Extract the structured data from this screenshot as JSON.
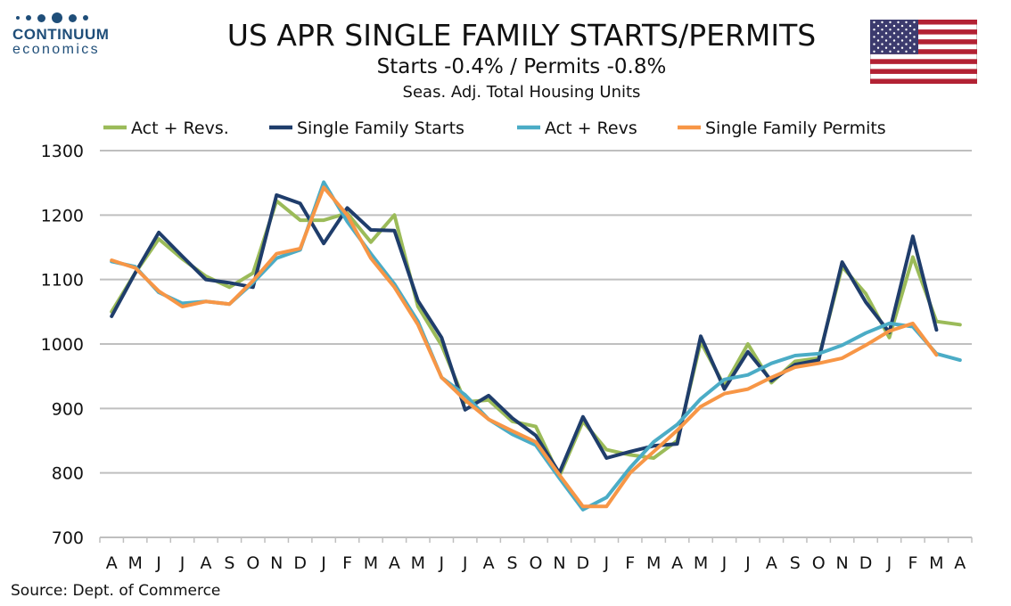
{
  "header": {
    "title": "US APR SINGLE FAMILY STARTS/PERMITS",
    "subtitle": "Starts  -0.4% / Permits -0.8%",
    "subtitle2": "Seas. Adj. Total Housing Units"
  },
  "logo": {
    "name": "CONTINUUM",
    "sub": "economics",
    "color": "#1f4e79"
  },
  "flag_icon": "us-flag-icon",
  "source": "Source: Dept. of Commerce",
  "chart_data": {
    "type": "line",
    "categories": [
      "A",
      "M",
      "J",
      "J",
      "A",
      "S",
      "O",
      "N",
      "D",
      "J",
      "F",
      "M",
      "A",
      "M",
      "J",
      "J",
      "A",
      "S",
      "O",
      "N",
      "D",
      "J",
      "F",
      "M",
      "A",
      "M",
      "J",
      "J",
      "A",
      "S",
      "O",
      "N",
      "D",
      "J",
      "F",
      "M",
      "A"
    ],
    "ylim": [
      700,
      1300
    ],
    "yticks": [
      700,
      800,
      900,
      1000,
      1100,
      1200,
      1300
    ],
    "grid": true,
    "legend_position": "top",
    "series": [
      {
        "name": "Act + Revs.",
        "color": "#9bbb59",
        "values": [
          1050,
          1110,
          1163,
          1132,
          1105,
          1088,
          1110,
          1222,
          1192,
          1192,
          1203,
          1158,
          1200,
          1058,
          998,
          910,
          913,
          880,
          872,
          795,
          880,
          836,
          828,
          823,
          850,
          1003,
          935,
          1000,
          940,
          973,
          978,
          1120,
          1078,
          1010,
          1135,
          1035,
          1030
        ]
      },
      {
        "name": "Single Family Starts",
        "color": "#1f3d6b",
        "values": [
          1043,
          1110,
          1173,
          1136,
          1100,
          1095,
          1088,
          1231,
          1218,
          1156,
          1211,
          1177,
          1176,
          1067,
          1010,
          898,
          920,
          885,
          858,
          800,
          887,
          823,
          833,
          842,
          845,
          1012,
          930,
          988,
          943,
          968,
          975,
          1127,
          1065,
          1018,
          1167,
          1022,
          null
        ]
      },
      {
        "name": "Act + Revs",
        "color": "#4bacc6",
        "values": [
          1128,
          1120,
          1080,
          1063,
          1066,
          1062,
          1095,
          1133,
          1146,
          1251,
          1190,
          1140,
          1093,
          1035,
          948,
          921,
          883,
          860,
          843,
          792,
          743,
          762,
          808,
          848,
          875,
          915,
          945,
          952,
          970,
          982,
          985,
          998,
          1017,
          1032,
          1027,
          985,
          975
        ]
      },
      {
        "name": "Single Family Permits",
        "color": "#f79646",
        "values": [
          1130,
          1118,
          1082,
          1058,
          1066,
          1062,
          1098,
          1140,
          1148,
          1243,
          1200,
          1133,
          1088,
          1030,
          948,
          913,
          883,
          865,
          848,
          797,
          748,
          748,
          800,
          833,
          866,
          903,
          923,
          930,
          948,
          964,
          970,
          978,
          998,
          1020,
          1032,
          983,
          null
        ]
      }
    ]
  }
}
